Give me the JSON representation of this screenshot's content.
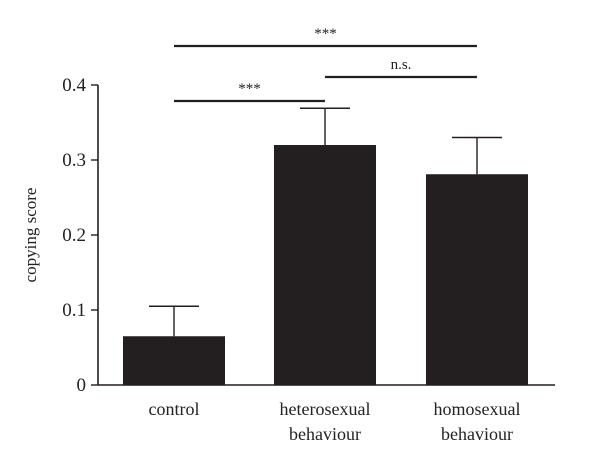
{
  "chart_data": {
    "type": "bar",
    "categories": [
      [
        "control"
      ],
      [
        "heterosexual",
        "behaviour"
      ],
      [
        "homosexual",
        "behaviour"
      ]
    ],
    "values": [
      0.065,
      0.32,
      0.281
    ],
    "error_upper": [
      0.105,
      0.369,
      0.33
    ],
    "title": "",
    "xlabel": "",
    "ylabel": "copying score",
    "ylim": [
      0,
      0.4
    ],
    "yticks": [
      "0",
      "0.1",
      "0.2",
      "0.3",
      "0.4"
    ],
    "yticks_values": [
      0,
      0.1,
      0.2,
      0.3,
      0.4
    ],
    "bar_color": "#231f20",
    "grid": false,
    "legend": "none",
    "significance": [
      {
        "from": 0,
        "to": 2,
        "label": "***"
      },
      {
        "from": 1,
        "to": 2,
        "label": "n.s."
      },
      {
        "from": 0,
        "to": 1,
        "label": "***"
      }
    ]
  }
}
